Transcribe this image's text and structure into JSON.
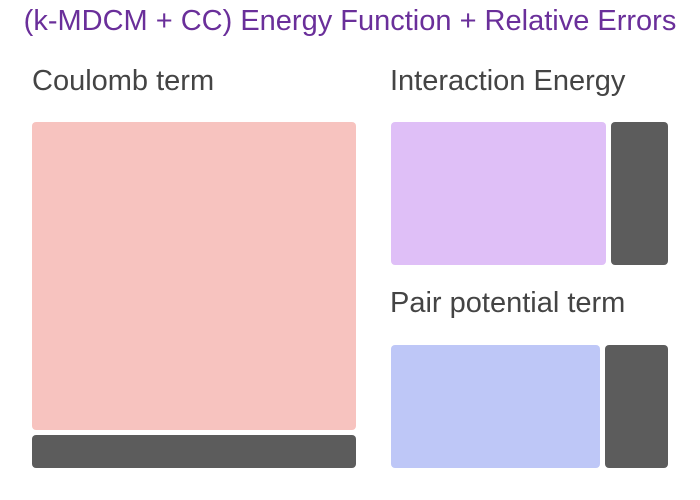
{
  "title": "(k-MDCM + CC) Energy Function + Relative Errors",
  "colors": {
    "title": "#6a2f9a",
    "label": "#444444",
    "coulomb_fill": "#f7c3bf",
    "interaction_fill": "#dfbff7",
    "pair_fill": "#bec7f7",
    "error_fill": "#5c5c5c"
  },
  "sections": {
    "coulomb": {
      "label": "Coulomb term"
    },
    "interaction": {
      "label": "Interaction Energy"
    },
    "pair": {
      "label": "Pair potential term"
    }
  }
}
